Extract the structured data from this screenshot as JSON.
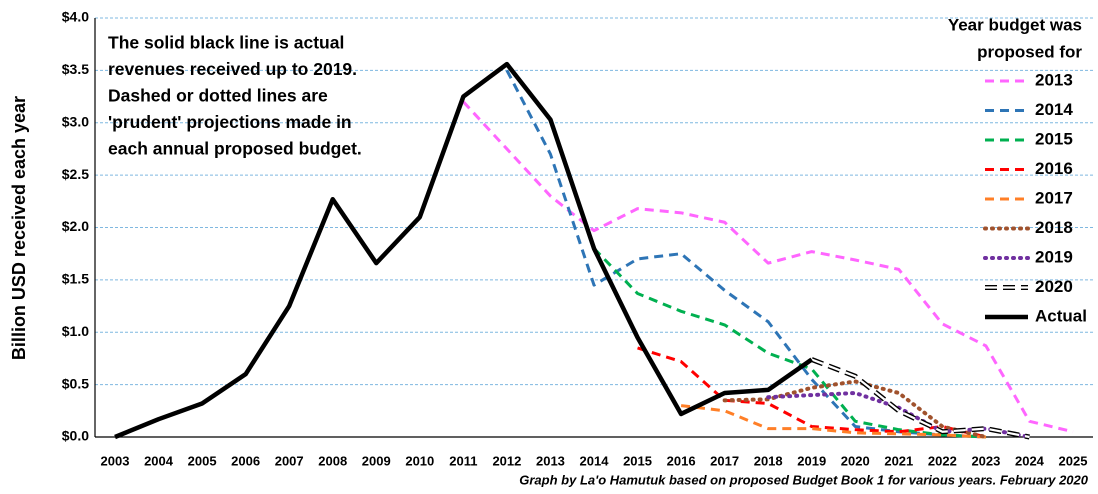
{
  "chart_data": {
    "type": "line",
    "y_label": "Billion USD received each year",
    "annotation": [
      "The solid black line is actual",
      "revenues received up to 2019.",
      "Dashed or dotted lines are",
      "'prudent' projections made in",
      "each annual proposed budget."
    ],
    "legend_title": [
      "Year budget was",
      "proposed for"
    ],
    "source": "Graph by La'o Hamutuk based on proposed Budget Book 1 for various years. February 2020",
    "categories": [
      "2003",
      "2004",
      "2005",
      "2006",
      "2007",
      "2008",
      "2009",
      "2010",
      "2011",
      "2012",
      "2013",
      "2014",
      "2015",
      "2016",
      "2017",
      "2018",
      "2019",
      "2020",
      "2021",
      "2022",
      "2023",
      "2024",
      "2025"
    ],
    "ylim": [
      0,
      4
    ],
    "yticks": [
      {
        "value": 0,
        "label": "$0.0"
      },
      {
        "value": 0.5,
        "label": "$0.5"
      },
      {
        "value": 1,
        "label": "$1.0"
      },
      {
        "value": 1.5,
        "label": "$1.5"
      },
      {
        "value": 2,
        "label": "$2.0"
      },
      {
        "value": 2.5,
        "label": "$2.5"
      },
      {
        "value": 3,
        "label": "$3.0"
      },
      {
        "value": 3.5,
        "label": "$3.5"
      },
      {
        "value": 4,
        "label": "$4.0"
      }
    ],
    "grid": true,
    "legend": "right",
    "series": [
      {
        "name": "2013",
        "color": "#ff66ff",
        "style": "dashed",
        "values": [
          null,
          null,
          null,
          null,
          null,
          null,
          null,
          null,
          3.2,
          2.75,
          2.3,
          1.97,
          2.18,
          2.14,
          2.05,
          1.66,
          1.77,
          1.69,
          1.6,
          1.08,
          0.87,
          0.15,
          0.05
        ]
      },
      {
        "name": "2014",
        "color": "#2e75b6",
        "style": "dashed",
        "values": [
          null,
          null,
          null,
          null,
          null,
          null,
          null,
          null,
          null,
          3.5,
          2.7,
          1.45,
          1.7,
          1.75,
          1.4,
          1.1,
          0.55,
          0.1,
          0.05,
          0.02,
          0,
          null,
          null
        ]
      },
      {
        "name": "2015",
        "color": "#00b050",
        "style": "dashed",
        "values": [
          null,
          null,
          null,
          null,
          null,
          null,
          null,
          null,
          null,
          null,
          null,
          1.8,
          1.37,
          1.2,
          1.07,
          0.8,
          0.65,
          0.15,
          0.07,
          0.02,
          0,
          null,
          null
        ]
      },
      {
        "name": "2016",
        "color": "#ff0000",
        "style": "dashed",
        "values": [
          null,
          null,
          null,
          null,
          null,
          null,
          null,
          null,
          null,
          null,
          null,
          null,
          0.85,
          0.72,
          0.35,
          0.32,
          0.1,
          0.07,
          0.05,
          0.1,
          0,
          null,
          null
        ]
      },
      {
        "name": "2017",
        "color": "#ff7f27",
        "style": "dashed",
        "values": [
          null,
          null,
          null,
          null,
          null,
          null,
          null,
          null,
          null,
          null,
          null,
          null,
          null,
          0.3,
          0.25,
          0.08,
          0.08,
          0.04,
          0.03,
          0.02,
          0,
          null,
          null
        ]
      },
      {
        "name": "2018",
        "color": "#a0522d",
        "style": "dotted",
        "values": [
          null,
          null,
          null,
          null,
          null,
          null,
          null,
          null,
          null,
          null,
          null,
          null,
          null,
          null,
          0.35,
          0.36,
          0.47,
          0.53,
          0.42,
          0.1,
          0,
          null,
          null
        ]
      },
      {
        "name": "2019",
        "color": "#7030a0",
        "style": "dotted",
        "values": [
          null,
          null,
          null,
          null,
          null,
          null,
          null,
          null,
          null,
          null,
          null,
          null,
          null,
          null,
          null,
          0.38,
          0.4,
          0.42,
          0.28,
          0.05,
          0.08,
          0,
          null
        ]
      },
      {
        "name": "2020",
        "color": "#000000",
        "style": "outlined",
        "values": [
          null,
          null,
          null,
          null,
          null,
          null,
          null,
          null,
          null,
          null,
          null,
          null,
          null,
          null,
          null,
          null,
          0.74,
          0.58,
          0.25,
          0.05,
          0.08,
          0,
          null
        ]
      },
      {
        "name": "Actual",
        "color": "#000000",
        "style": "solid",
        "values": [
          0,
          0.17,
          0.32,
          0.6,
          1.25,
          2.27,
          1.66,
          2.1,
          3.25,
          3.56,
          3.03,
          1.8,
          0.95,
          0.22,
          0.42,
          0.45,
          0.74,
          null,
          null,
          null,
          null,
          null,
          null
        ]
      }
    ]
  }
}
